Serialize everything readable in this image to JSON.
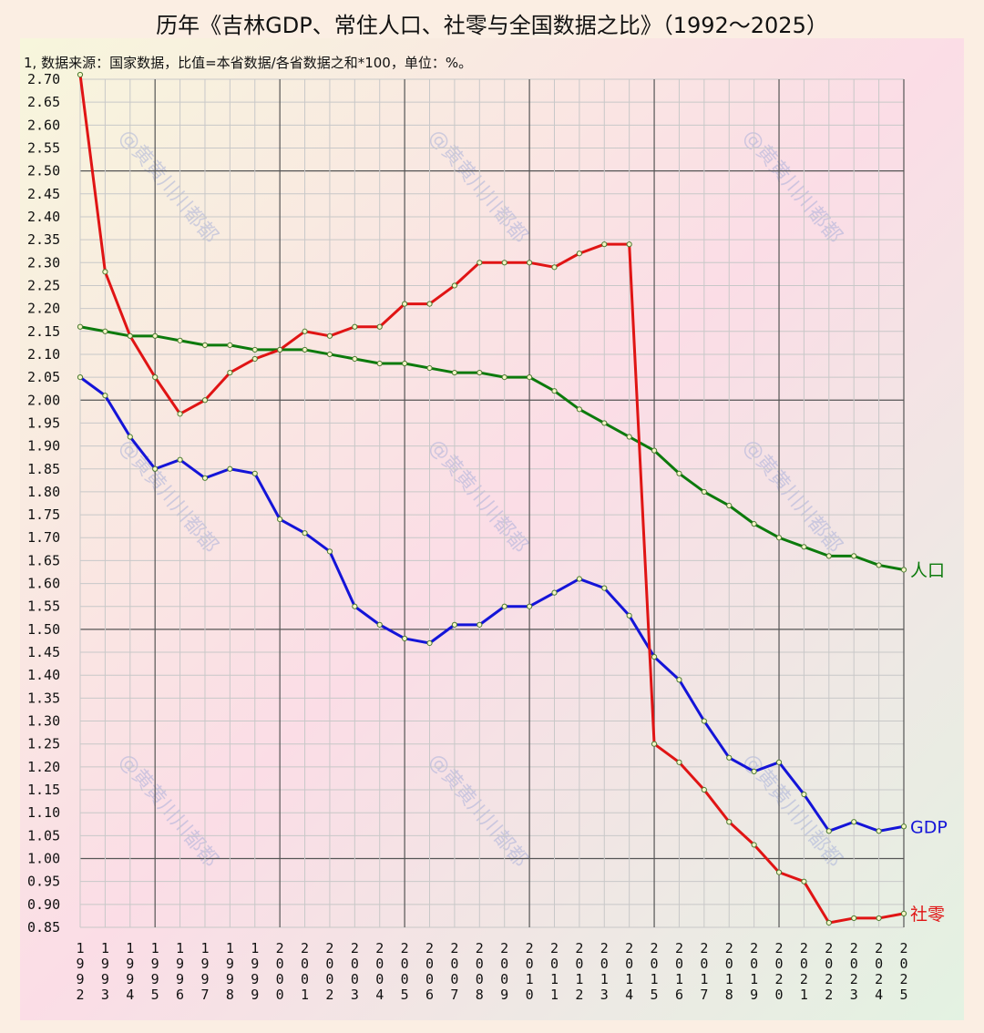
{
  "title": "历年《吉林GDP、常住人口、社零与全国数据之比》（1992～2025）",
  "note": "1, 数据来源：国家数据，比值=本省数据/各省数据之和*100，单位：%。",
  "watermark": "@黄黄川川都都",
  "colors": {
    "background": "#fbeee3",
    "gdp": "#1414d8",
    "population": "#0c7a0c",
    "retail": "#e01414",
    "grid_minor": "#c8c8c8",
    "grid_major": "#555555"
  },
  "chart_data": {
    "type": "line",
    "title": "历年《吉林GDP、常住人口、社零与全国数据之比》（1992～2025）",
    "xlabel": "",
    "ylabel": "",
    "x": [
      "1992",
      "1993",
      "1994",
      "1995",
      "1996",
      "1997",
      "1998",
      "1999",
      "2000",
      "2001",
      "2002",
      "2003",
      "2004",
      "2005",
      "2006",
      "2007",
      "2008",
      "2009",
      "2010",
      "2011",
      "2012",
      "2013",
      "2014",
      "2015",
      "2016",
      "2017",
      "2018",
      "2019",
      "2020",
      "2021",
      "2022",
      "2023",
      "2024",
      "2025"
    ],
    "ylim": [
      0.85,
      2.7
    ],
    "yticks": [
      "2.70",
      "2.65",
      "2.60",
      "2.55",
      "2.50",
      "2.45",
      "2.40",
      "2.35",
      "2.30",
      "2.25",
      "2.20",
      "2.15",
      "2.10",
      "2.05",
      "2.00",
      "1.95",
      "1.90",
      "1.85",
      "1.80",
      "1.75",
      "1.70",
      "1.65",
      "1.60",
      "1.55",
      "1.50",
      "1.45",
      "1.40",
      "1.35",
      "1.30",
      "1.25",
      "1.20",
      "1.15",
      "1.10",
      "1.05",
      "1.00",
      "0.95",
      "0.90",
      "0.85"
    ],
    "grid": true,
    "series": [
      {
        "name": "GDP",
        "color": "#1414d8",
        "values": [
          2.05,
          2.01,
          1.92,
          1.85,
          1.87,
          1.83,
          1.85,
          1.84,
          1.74,
          1.71,
          1.67,
          1.55,
          1.51,
          1.48,
          1.47,
          1.51,
          1.51,
          1.55,
          1.55,
          1.58,
          1.61,
          1.59,
          1.53,
          1.44,
          1.39,
          1.3,
          1.22,
          1.19,
          1.21,
          1.14,
          1.06,
          1.08,
          1.06,
          1.07
        ]
      },
      {
        "name": "人口",
        "color": "#0c7a0c",
        "values": [
          2.16,
          2.15,
          2.14,
          2.14,
          2.13,
          2.12,
          2.12,
          2.11,
          2.11,
          2.11,
          2.1,
          2.09,
          2.08,
          2.08,
          2.07,
          2.06,
          2.06,
          2.05,
          2.05,
          2.02,
          1.98,
          1.95,
          1.92,
          1.89,
          1.84,
          1.8,
          1.77,
          1.73,
          1.7,
          1.68,
          1.66,
          1.66,
          1.64,
          1.63
        ]
      },
      {
        "name": "社零",
        "color": "#e01414",
        "values": [
          2.71,
          2.28,
          2.14,
          2.05,
          1.97,
          2.0,
          2.06,
          2.09,
          2.11,
          2.15,
          2.14,
          2.16,
          2.16,
          2.21,
          2.21,
          2.25,
          2.3,
          2.3,
          2.3,
          2.29,
          2.32,
          2.34,
          2.34,
          1.25,
          1.21,
          1.15,
          1.08,
          1.03,
          0.97,
          0.95,
          0.86,
          0.87,
          0.87,
          0.88
        ]
      }
    ]
  }
}
